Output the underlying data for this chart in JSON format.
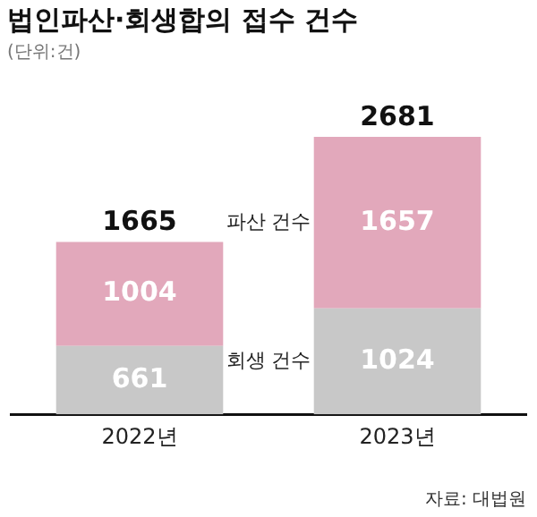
{
  "chart_data": {
    "type": "bar",
    "title": "법인파산·회생합의 접수 건수",
    "subtitle": "(단위:건)",
    "categories": [
      "2022년",
      "2023년"
    ],
    "stacked": true,
    "data_labels": true,
    "legend": false,
    "series": [
      {
        "name": "회생 건수",
        "color": "#c8c8c8",
        "values": [
          661,
          1024
        ]
      },
      {
        "name": "파산 건수",
        "color": "#e2a8bb",
        "values": [
          1004,
          1657
        ]
      }
    ],
    "totals": [
      "1665",
      "2681"
    ],
    "annotations": [
      "자료: 대법원"
    ]
  }
}
